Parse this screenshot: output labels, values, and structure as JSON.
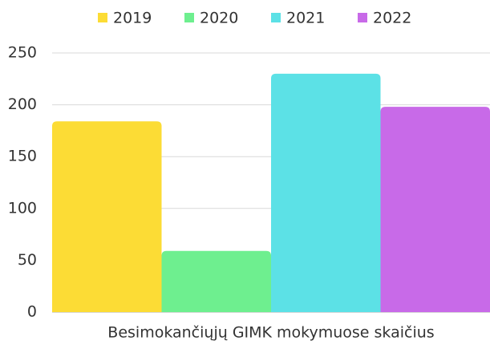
{
  "chart_data": {
    "type": "bar",
    "categories": [
      "Besimokančiųjų GIMK mokymuose skaičius"
    ],
    "series": [
      {
        "name": "2019",
        "color": "#fcdc35",
        "values": [
          184
        ]
      },
      {
        "name": "2020",
        "color": "#6eef8f",
        "values": [
          59
        ]
      },
      {
        "name": "2021",
        "color": "#5ce1e6",
        "values": [
          230
        ]
      },
      {
        "name": "2022",
        "color": "#c86ae8",
        "values": [
          198
        ]
      }
    ],
    "ylim": [
      0,
      250
    ],
    "yticks": [
      0,
      50,
      100,
      150,
      200,
      250
    ],
    "grid": true,
    "legend": "top"
  }
}
